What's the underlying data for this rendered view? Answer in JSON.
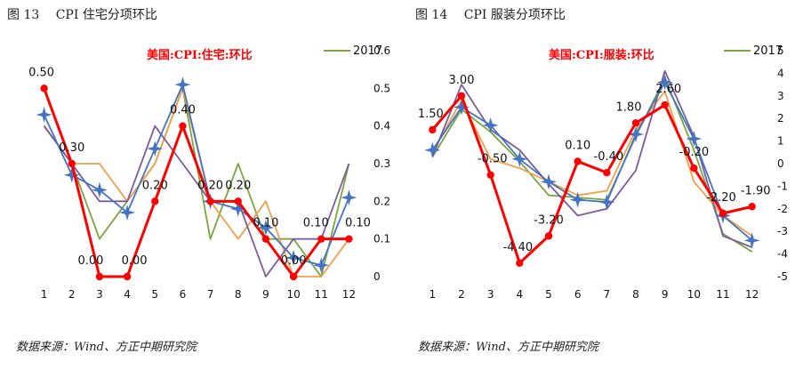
{
  "figures": [
    {
      "number": "图 13",
      "title": "CPI 住宅分项环比",
      "source": "数据来源：Wind、方正中期研究院"
    },
    {
      "number": "图 14",
      "title": "CPI 服装分项环比",
      "source": "数据来源：Wind、方正中期研究院"
    }
  ],
  "chart_data": [
    {
      "type": "line",
      "title": "美国:CPI:住宅:环比",
      "legend_label": "2017",
      "categories": [
        "1",
        "2",
        "3",
        "4",
        "5",
        "6",
        "7",
        "8",
        "9",
        "10",
        "11",
        "12"
      ],
      "ylim": [
        0,
        0.6
      ],
      "yticks": [
        "0",
        "0.1",
        "0.2",
        "0.3",
        "0.4",
        "0.5",
        "0.6"
      ],
      "grid": false,
      "series": [
        {
          "name": "美国:CPI:住宅:环比",
          "color": "#ff0000",
          "highlight": true,
          "values": [
            0.5,
            0.3,
            0.0,
            0.0,
            0.2,
            0.4,
            0.2,
            0.2,
            0.1,
            0.0,
            0.1,
            0.1
          ],
          "labels": [
            "0.50",
            "0.30",
            "0.00",
            "0.00",
            "0.20",
            "0.40",
            "0.20",
            "0.20",
            "0.10",
            "0.00",
            "0.10",
            "0.10"
          ]
        },
        {
          "name": "2017",
          "color": "#7aa63e",
          "values": [
            0.4,
            0.3,
            0.1,
            0.2,
            0.3,
            0.5,
            0.1,
            0.3,
            0.1,
            0.1,
            0.0,
            0.3
          ]
        },
        {
          "color": "#f0a04a",
          "values": [
            0.4,
            0.3,
            0.3,
            0.2,
            0.3,
            0.5,
            0.2,
            0.1,
            0.2,
            0.0,
            0.0,
            0.1
          ]
        },
        {
          "color": "#7a5c9e",
          "values": [
            0.4,
            0.3,
            0.2,
            0.2,
            0.4,
            0.3,
            0.2,
            0.2,
            0.0,
            0.1,
            0.1,
            0.3
          ]
        },
        {
          "color": "#4472c4",
          "marker": "star",
          "values": [
            0.43,
            0.27,
            0.23,
            0.17,
            0.34,
            0.51,
            0.2,
            0.18,
            0.13,
            0.05,
            0.03,
            0.21
          ]
        }
      ]
    },
    {
      "type": "line",
      "title": "美国:CPI:服装:环比",
      "legend_label": "2017",
      "categories": [
        "1",
        "2",
        "3",
        "4",
        "5",
        "6",
        "7",
        "8",
        "9",
        "10",
        "11",
        "12"
      ],
      "ylim": [
        -5,
        5
      ],
      "yticks": [
        "-5",
        "-4",
        "-3",
        "-2",
        "-1",
        "0",
        "1",
        "2",
        "3",
        "4",
        "5"
      ],
      "grid": false,
      "series": [
        {
          "name": "美国:CPI:服装:环比",
          "color": "#ff0000",
          "highlight": true,
          "values": [
            1.5,
            3.0,
            -0.5,
            -4.4,
            -3.2,
            0.1,
            -0.4,
            1.8,
            2.6,
            -0.2,
            -2.2,
            -1.9
          ],
          "labels": [
            "1.50",
            "3.00",
            "-0.50",
            "-4.40",
            "-3.20",
            "0.10",
            "-0.40",
            "1.80",
            "2.60",
            "-0.20",
            "-2.20",
            "-1.90"
          ]
        },
        {
          "name": "2017",
          "color": "#7aa63e",
          "values": [
            0.3,
            2.4,
            1.4,
            0.1,
            -1.4,
            -1.5,
            -1.6,
            1.2,
            3.8,
            0.6,
            -3.1,
            -3.9
          ]
        },
        {
          "color": "#f0a04a",
          "values": [
            0.5,
            2.8,
            0.2,
            -0.2,
            -0.8,
            -1.4,
            -1.2,
            1.5,
            3.2,
            -0.8,
            -2.3,
            -3.2
          ]
        },
        {
          "color": "#7a5c9e",
          "values": [
            0.3,
            3.5,
            1.5,
            0.6,
            -0.9,
            -2.3,
            -2.0,
            -0.3,
            4.1,
            1.2,
            -3.2,
            -3.7
          ]
        },
        {
          "color": "#4472c4",
          "marker": "star",
          "values": [
            0.6,
            2.5,
            1.7,
            0.2,
            -0.8,
            -1.6,
            -1.7,
            1.3,
            3.6,
            1.1,
            -2.3,
            -3.4
          ]
        }
      ]
    }
  ]
}
